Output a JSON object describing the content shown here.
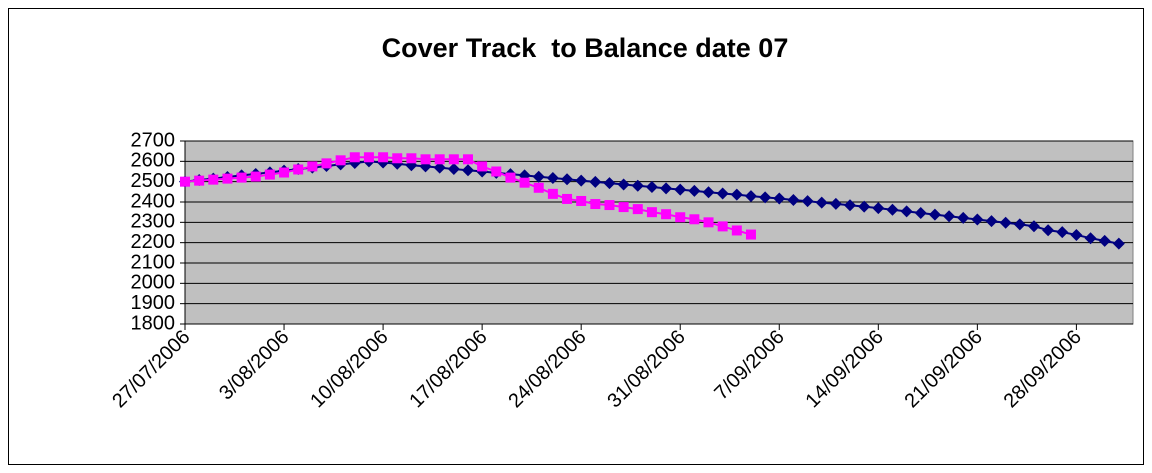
{
  "chart_data": {
    "type": "line",
    "title": "Cover Track  to Balance date 07",
    "x": [
      "27/07/2006",
      "28/07/2006",
      "29/07/2006",
      "30/07/2006",
      "31/07/2006",
      "1/08/2006",
      "2/08/2006",
      "3/08/2006",
      "4/08/2006",
      "5/08/2006",
      "6/08/2006",
      "7/08/2006",
      "8/08/2006",
      "9/08/2006",
      "10/08/2006",
      "11/08/2006",
      "12/08/2006",
      "13/08/2006",
      "14/08/2006",
      "15/08/2006",
      "16/08/2006",
      "17/08/2006",
      "18/08/2006",
      "19/08/2006",
      "20/08/2006",
      "21/08/2006",
      "22/08/2006",
      "23/08/2006",
      "24/08/2006",
      "25/08/2006",
      "26/08/2006",
      "27/08/2006",
      "28/08/2006",
      "29/08/2006",
      "30/08/2006",
      "31/08/2006",
      "1/09/2006",
      "2/09/2006",
      "3/09/2006",
      "4/09/2006",
      "5/09/2006",
      "6/09/2006",
      "7/09/2006",
      "8/09/2006",
      "9/09/2006",
      "10/09/2006",
      "11/09/2006",
      "12/09/2006",
      "13/09/2006",
      "14/09/2006",
      "15/09/2006",
      "16/09/2006",
      "17/09/2006",
      "18/09/2006",
      "19/09/2006",
      "20/09/2006",
      "21/09/2006",
      "22/09/2006",
      "23/09/2006",
      "24/09/2006",
      "25/09/2006",
      "26/09/2006",
      "27/09/2006",
      "28/09/2006",
      "29/09/2006",
      "30/09/2006",
      "1/10/2006"
    ],
    "series": [
      {
        "color": "#000080",
        "marker": "diamond",
        "values": [
          2500,
          2508,
          2515,
          2523,
          2531,
          2538,
          2546,
          2554,
          2562,
          2569,
          2577,
          2585,
          2592,
          2600,
          2594,
          2588,
          2581,
          2575,
          2569,
          2562,
          2556,
          2550,
          2543,
          2537,
          2531,
          2524,
          2518,
          2512,
          2505,
          2499,
          2493,
          2486,
          2480,
          2474,
          2467,
          2461,
          2455,
          2448,
          2442,
          2436,
          2429,
          2423,
          2417,
          2410,
          2404,
          2397,
          2391,
          2384,
          2377,
          2370,
          2362,
          2354,
          2346,
          2338,
          2330,
          2322,
          2314,
          2306,
          2298,
          2290,
          2281,
          2261,
          2252,
          2238,
          2222,
          2209,
          2195
        ]
      },
      {
        "color": "#FF00FF",
        "marker": "square",
        "values": [
          2500,
          2505,
          2510,
          2515,
          2520,
          2525,
          2535,
          2545,
          2560,
          2575,
          2590,
          2605,
          2620,
          2620,
          2620,
          2615,
          2615,
          2610,
          2610,
          2610,
          2610,
          2575,
          2550,
          2520,
          2495,
          2470,
          2440,
          2415,
          2405,
          2390,
          2385,
          2375,
          2365,
          2350,
          2340,
          2325,
          2315,
          2300,
          2280,
          2260,
          2240,
          null,
          null,
          null,
          null,
          null,
          null,
          null,
          null,
          null,
          null,
          null,
          null,
          null,
          null,
          null,
          null,
          null,
          null,
          null,
          null,
          null,
          null,
          null,
          null,
          null,
          null
        ]
      }
    ],
    "xlim": [
      "27/07/2006",
      "2/10/2006"
    ],
    "xticks": [
      "27/07/2006",
      "3/08/2006",
      "10/08/2006",
      "17/08/2006",
      "24/08/2006",
      "31/08/2006",
      "7/09/2006",
      "14/09/2006",
      "21/09/2006",
      "28/09/2006"
    ],
    "ylim": [
      1800,
      2700
    ],
    "yticks": [
      1800,
      1900,
      2000,
      2100,
      2200,
      2300,
      2400,
      2500,
      2600,
      2700
    ],
    "grid": true,
    "plot_background": "#C0C0C0"
  }
}
